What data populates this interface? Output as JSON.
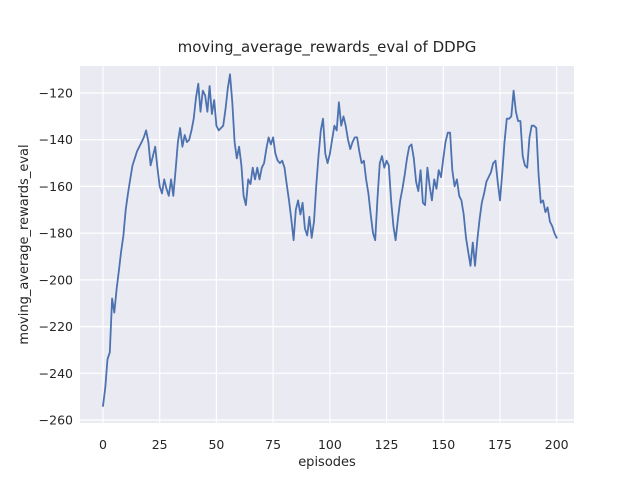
{
  "figure": {
    "title": "moving_average_rewards_eval of DDPG"
  },
  "chart_data": {
    "type": "line",
    "title": "moving_average_rewards_eval of DDPG",
    "xlabel": "episodes",
    "ylabel": "moving_average_rewards_eval",
    "x_ticks": [
      0,
      25,
      50,
      75,
      100,
      125,
      150,
      175,
      200
    ],
    "y_ticks": [
      -260,
      -240,
      -220,
      -200,
      -180,
      -160,
      -140,
      -120
    ],
    "xlim": [
      -10,
      208
    ],
    "ylim": [
      -261,
      -108
    ],
    "grid": true,
    "style": "seaborn-darkgrid",
    "legend": "none",
    "colors": {
      "line": "#4C72B0",
      "axes_background": "#EAEAF2",
      "grid": "#FFFFFF",
      "text": "#262626",
      "figure_background": "#FFFFFF"
    },
    "series": [
      {
        "name": "moving_average_rewards_eval",
        "x_start": 0,
        "x_step": 1,
        "n_points": 201,
        "values": [
          -254,
          -246,
          -234,
          -231,
          -208,
          -214,
          -204,
          -196,
          -188,
          -181,
          -170,
          -163,
          -157,
          -151,
          -148,
          -145,
          -143,
          -141,
          -139,
          -136,
          -141,
          -151,
          -147,
          -143,
          -152,
          -160,
          -163,
          -157,
          -161,
          -164,
          -157,
          -164,
          -153,
          -141,
          -135,
          -143,
          -138,
          -141,
          -140,
          -136,
          -131,
          -122,
          -116,
          -128,
          -119,
          -121,
          -128,
          -117,
          -129,
          -123,
          -134,
          -136,
          -135,
          -134,
          -127,
          -118,
          -112,
          -124,
          -141,
          -148,
          -143,
          -151,
          -164,
          -168,
          -157,
          -159,
          -152,
          -157,
          -152,
          -157,
          -152,
          -150,
          -144,
          -139,
          -142,
          -139,
          -146,
          -149,
          -150,
          -149,
          -152,
          -159,
          -166,
          -174,
          -183,
          -170,
          -166,
          -172,
          -167,
          -178,
          -181,
          -173,
          -182,
          -175,
          -160,
          -147,
          -136,
          -131,
          -146,
          -150,
          -146,
          -140,
          -134,
          -136,
          -124,
          -134,
          -130,
          -134,
          -140,
          -144,
          -141,
          -139,
          -139,
          -145,
          -150,
          -149,
          -157,
          -163,
          -172,
          -180,
          -183,
          -165,
          -150,
          -147,
          -152,
          -149,
          -151,
          -166,
          -177,
          -183,
          -174,
          -166,
          -161,
          -155,
          -148,
          -143,
          -142,
          -148,
          -158,
          -162,
          -153,
          -167,
          -168,
          -152,
          -160,
          -166,
          -157,
          -161,
          -153,
          -156,
          -148,
          -141,
          -137,
          -137,
          -153,
          -160,
          -157,
          -164,
          -166,
          -172,
          -182,
          -188,
          -194,
          -184,
          -194,
          -183,
          -174,
          -167,
          -163,
          -158,
          -156,
          -154,
          -150,
          -149,
          -158,
          -166,
          -154,
          -141,
          -131,
          -131,
          -130,
          -119,
          -128,
          -132,
          -132,
          -147,
          -151,
          -152,
          -139,
          -134,
          -134,
          -135,
          -155,
          -167,
          -166,
          -171,
          -169,
          -175,
          -177,
          -180,
          -182
        ]
      }
    ]
  }
}
